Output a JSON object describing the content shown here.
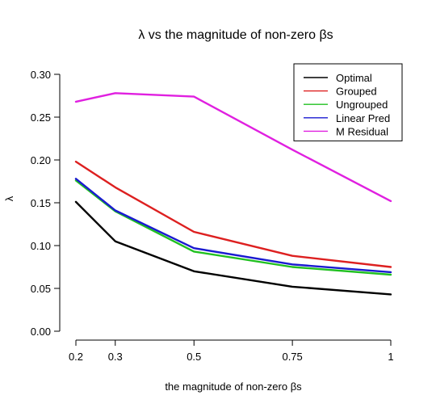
{
  "chart_data": {
    "type": "line",
    "title": "λ vs the magnitude of non-zero βs",
    "xlabel": "the magnitude of non-zero βs",
    "ylabel": "λ",
    "x": [
      0.2,
      0.3,
      0.5,
      0.75,
      1
    ],
    "x_tick_labels": [
      "0.2",
      "0.3",
      "0.5",
      "0.75",
      "1"
    ],
    "xlim": [
      0.2,
      1
    ],
    "ylim": [
      0,
      0.3
    ],
    "y_ticks": [
      0,
      0.05,
      0.1,
      0.15,
      0.2,
      0.25,
      0.3
    ],
    "y_tick_labels": [
      "0.00",
      "0.05",
      "0.10",
      "0.15",
      "0.20",
      "0.25",
      "0.30"
    ],
    "grid": false,
    "legend_position": "top-right",
    "series": [
      {
        "name": "Optimal",
        "color": "#000000",
        "values": [
          0.151,
          0.105,
          0.07,
          0.052,
          0.043
        ]
      },
      {
        "name": "Grouped",
        "color": "#dd2020",
        "values": [
          0.198,
          0.168,
          0.116,
          0.088,
          0.075
        ]
      },
      {
        "name": "Ungrouped",
        "color": "#20c020",
        "values": [
          0.176,
          0.14,
          0.093,
          0.075,
          0.066
        ]
      },
      {
        "name": "Linear Pred",
        "color": "#1a1ad0",
        "values": [
          0.178,
          0.141,
          0.097,
          0.078,
          0.069
        ]
      },
      {
        "name": "M Residual",
        "color": "#e020e0",
        "values": [
          0.268,
          0.278,
          0.274,
          0.212,
          0.152
        ]
      }
    ]
  }
}
